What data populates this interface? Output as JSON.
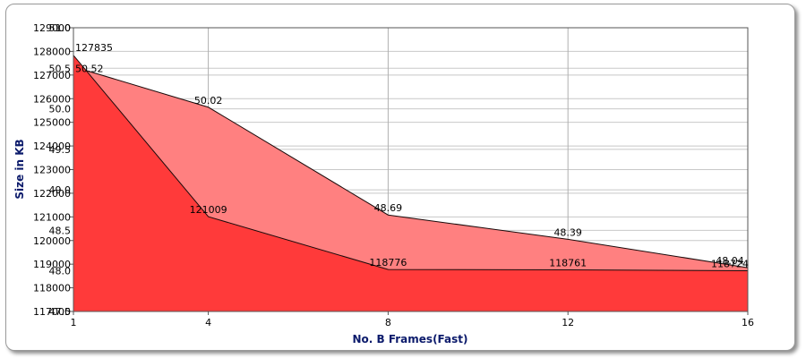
{
  "chart_data": {
    "type": "area",
    "title": "",
    "xlabel": "No. B Frames(Fast)",
    "ylabel": "Size in KB",
    "x": [
      1,
      4,
      8,
      12,
      16
    ],
    "x_ticks": [
      "1",
      "4",
      "8",
      "12",
      "16"
    ],
    "grid": true,
    "legend": "none",
    "series": [
      {
        "axis": "left",
        "color": "#ff3a3a",
        "values": [
          127835,
          121009,
          118776,
          118761,
          118724
        ],
        "labels": [
          "127835",
          "121009",
          "118776",
          "118761",
          "118724"
        ]
      },
      {
        "axis": "right",
        "color": "#ff8080",
        "values": [
          50.52,
          50.02,
          48.69,
          48.39,
          48.04
        ],
        "labels": [
          "50.52",
          "50.02",
          "48.69",
          "48.39",
          "48.04"
        ]
      }
    ],
    "y_left": {
      "ylim": [
        117000,
        129000
      ],
      "ticks": [
        "117000",
        "118000",
        "119000",
        "120000",
        "121000",
        "122000",
        "123000",
        "124000",
        "125000",
        "126000",
        "127000",
        "128000",
        "129000"
      ]
    },
    "y_right": {
      "ylim": [
        47.5,
        51.0
      ],
      "ticks": [
        "47.5",
        "48.0",
        "48.5",
        "49.0",
        "49.5",
        "50.0",
        "50.5",
        "51.0"
      ]
    }
  }
}
